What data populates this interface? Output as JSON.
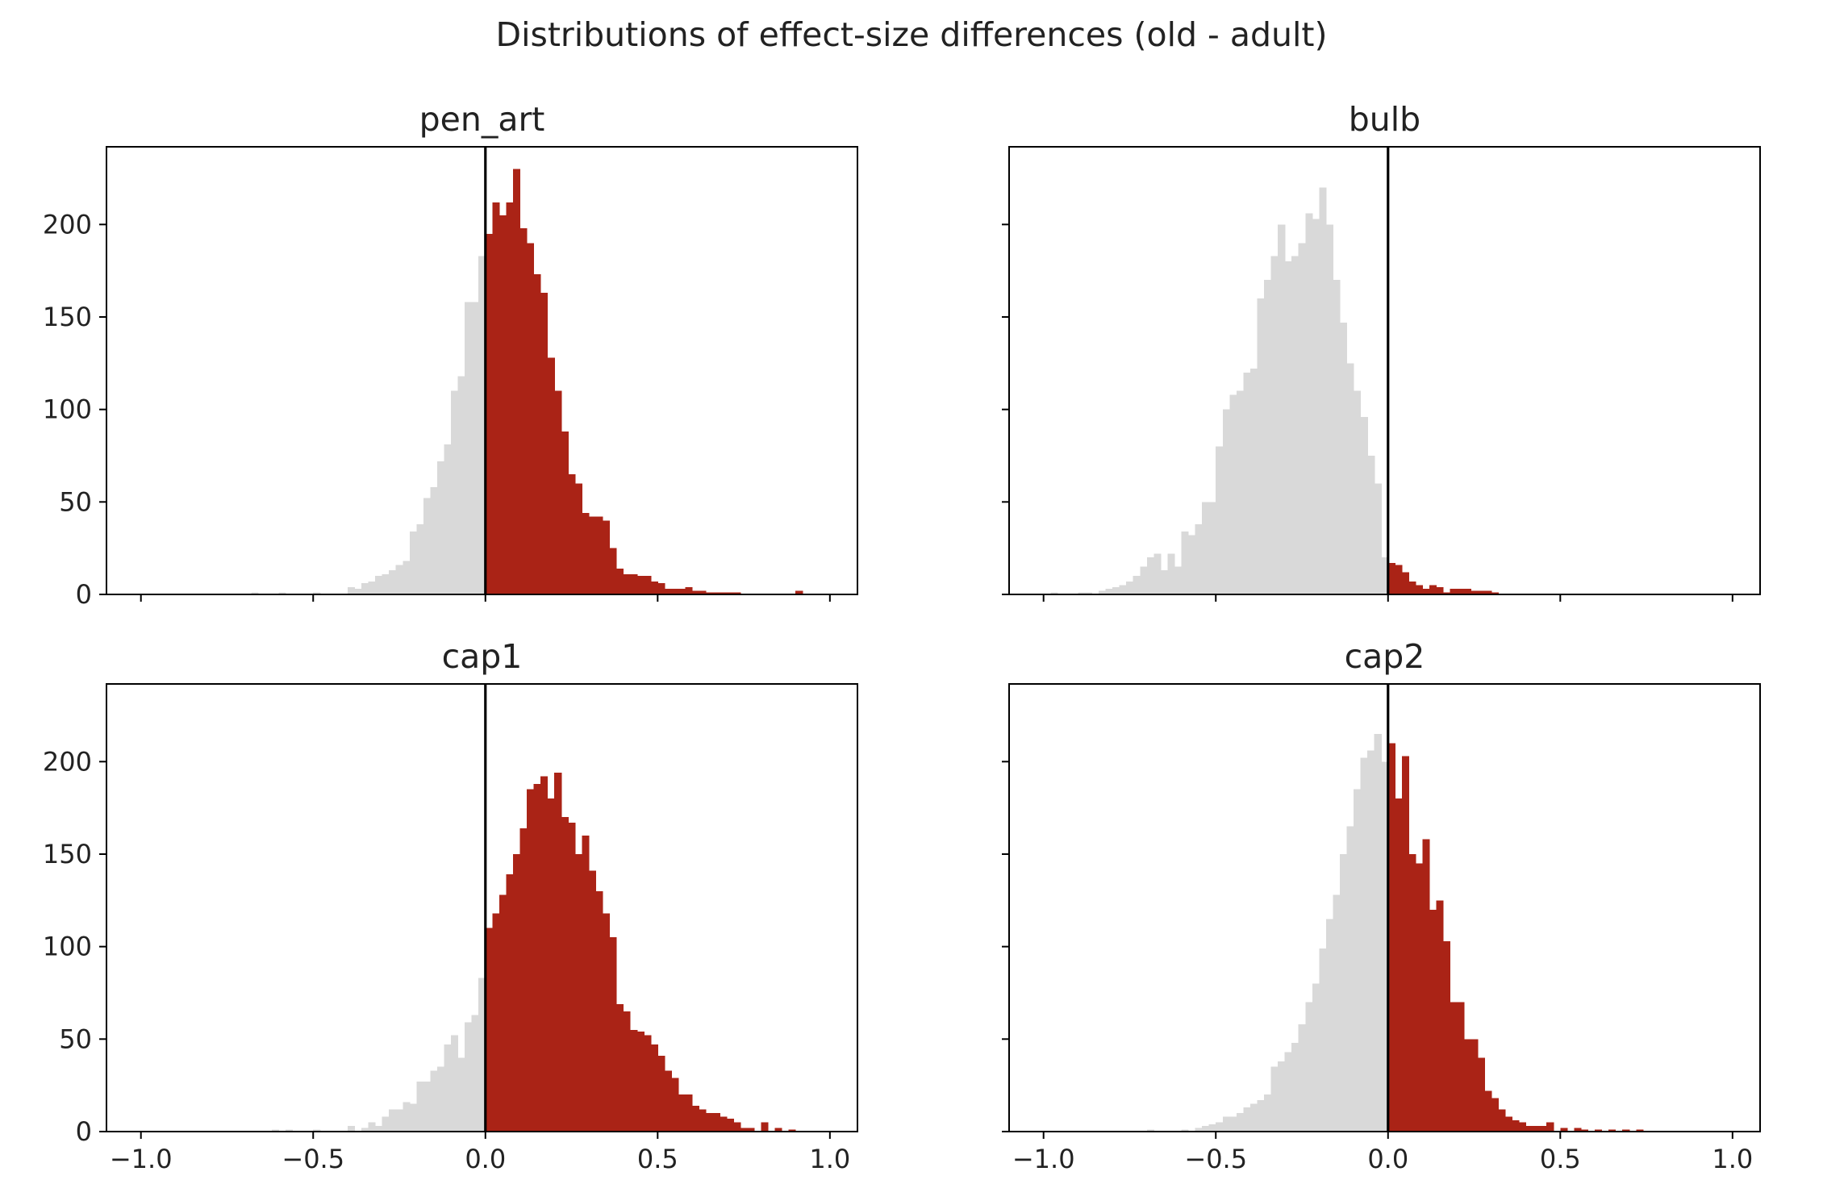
{
  "title": "Distributions of effect-size differences (old - adult)",
  "colors": {
    "below_zero": "#d9d9d9",
    "above_zero": "#aa2316",
    "zero_line": "#000000",
    "axes": "#000000"
  },
  "chart_data": [
    {
      "type": "bar",
      "title": "pen_art",
      "xlim": [
        -1.1,
        1.08
      ],
      "ylim": [
        0,
        242
      ],
      "xticks": [
        -1.0,
        -0.5,
        0.0,
        0.5,
        1.0
      ],
      "xtick_labels": [
        "−1.0",
        "−0.5",
        "0.0",
        "0.5",
        "1.0"
      ],
      "yticks": [
        0,
        50,
        100,
        150,
        200
      ],
      "ytick_labels": [
        "0",
        "50",
        "100",
        "150",
        "200"
      ],
      "show_xtick_labels": false,
      "show_ytick_labels": true,
      "vline_x": 0,
      "bin_width": 0.02,
      "bin_starts": [
        -0.68,
        -0.6,
        -0.5,
        -0.4,
        -0.38,
        -0.36,
        -0.34,
        -0.32,
        -0.3,
        -0.28,
        -0.26,
        -0.24,
        -0.22,
        -0.2,
        -0.18,
        -0.16,
        -0.14,
        -0.12,
        -0.1,
        -0.08,
        -0.06,
        -0.04,
        -0.02,
        0.0,
        0.02,
        0.04,
        0.06,
        0.08,
        0.1,
        0.12,
        0.14,
        0.16,
        0.18,
        0.2,
        0.22,
        0.24,
        0.26,
        0.28,
        0.3,
        0.32,
        0.34,
        0.36,
        0.38,
        0.4,
        0.42,
        0.44,
        0.46,
        0.48,
        0.5,
        0.52,
        0.54,
        0.56,
        0.58,
        0.6,
        0.62,
        0.64,
        0.66,
        0.68,
        0.7,
        0.72,
        0.9
      ],
      "values": [
        1,
        1,
        1,
        4,
        3,
        6,
        7,
        10,
        11,
        13,
        16,
        18,
        34,
        38,
        52,
        58,
        72,
        81,
        110,
        118,
        158,
        158,
        183,
        195,
        212,
        205,
        212,
        230,
        198,
        190,
        173,
        163,
        128,
        110,
        88,
        65,
        60,
        44,
        42,
        42,
        40,
        25,
        14,
        11,
        11,
        10,
        10,
        7,
        6,
        3,
        3,
        3,
        4,
        2,
        2,
        1,
        1,
        1,
        1,
        1,
        2
      ]
    },
    {
      "type": "bar",
      "title": "bulb",
      "xlim": [
        -1.1,
        1.08
      ],
      "ylim": [
        0,
        242
      ],
      "xticks": [
        -1.0,
        -0.5,
        0.0,
        0.5,
        1.0
      ],
      "xtick_labels": [
        "−1.0",
        "−0.5",
        "0.0",
        "0.5",
        "1.0"
      ],
      "yticks": [
        0,
        50,
        100,
        150,
        200
      ],
      "ytick_labels": [
        "0",
        "50",
        "100",
        "150",
        "200"
      ],
      "show_xtick_labels": false,
      "show_ytick_labels": false,
      "vline_x": 0,
      "bin_width": 0.02,
      "bin_starts": [
        -0.98,
        -0.9,
        -0.88,
        -0.84,
        -0.82,
        -0.8,
        -0.78,
        -0.76,
        -0.74,
        -0.72,
        -0.7,
        -0.68,
        -0.66,
        -0.64,
        -0.62,
        -0.6,
        -0.58,
        -0.56,
        -0.54,
        -0.52,
        -0.5,
        -0.48,
        -0.46,
        -0.44,
        -0.42,
        -0.4,
        -0.38,
        -0.36,
        -0.34,
        -0.32,
        -0.3,
        -0.28,
        -0.26,
        -0.24,
        -0.22,
        -0.2,
        -0.18,
        -0.16,
        -0.14,
        -0.12,
        -0.1,
        -0.08,
        -0.06,
        -0.04,
        -0.02,
        0.0,
        0.02,
        0.04,
        0.06,
        0.08,
        0.1,
        0.12,
        0.14,
        0.16,
        0.18,
        0.2,
        0.22,
        0.24,
        0.26,
        0.28,
        0.3
      ],
      "values": [
        1,
        1,
        1,
        2,
        3,
        4,
        5,
        7,
        10,
        15,
        20,
        22,
        13,
        22,
        15,
        34,
        32,
        38,
        50,
        50,
        80,
        100,
        108,
        110,
        120,
        122,
        160,
        170,
        183,
        200,
        180,
        183,
        190,
        206,
        203,
        220,
        200,
        170,
        147,
        125,
        110,
        96,
        75,
        60,
        20,
        17,
        16,
        12,
        7,
        5,
        3,
        5,
        4,
        1,
        3,
        3,
        3,
        2,
        2,
        2,
        1
      ]
    },
    {
      "type": "bar",
      "title": "cap1",
      "xlim": [
        -1.1,
        1.08
      ],
      "ylim": [
        0,
        242
      ],
      "xticks": [
        -1.0,
        -0.5,
        0.0,
        0.5,
        1.0
      ],
      "xtick_labels": [
        "−1.0",
        "−0.5",
        "0.0",
        "0.5",
        "1.0"
      ],
      "yticks": [
        0,
        50,
        100,
        150,
        200
      ],
      "ytick_labels": [
        "0",
        "50",
        "100",
        "150",
        "200"
      ],
      "show_xtick_labels": true,
      "show_ytick_labels": true,
      "vline_x": 0,
      "bin_width": 0.02,
      "bin_starts": [
        -0.62,
        -0.58,
        -0.5,
        -0.4,
        -0.36,
        -0.34,
        -0.32,
        -0.3,
        -0.28,
        -0.26,
        -0.24,
        -0.22,
        -0.2,
        -0.18,
        -0.16,
        -0.14,
        -0.12,
        -0.1,
        -0.08,
        -0.06,
        -0.04,
        -0.02,
        0.0,
        0.02,
        0.04,
        0.06,
        0.08,
        0.1,
        0.12,
        0.14,
        0.16,
        0.18,
        0.2,
        0.22,
        0.24,
        0.26,
        0.28,
        0.3,
        0.32,
        0.34,
        0.36,
        0.38,
        0.4,
        0.42,
        0.44,
        0.46,
        0.48,
        0.5,
        0.52,
        0.54,
        0.56,
        0.58,
        0.6,
        0.62,
        0.64,
        0.66,
        0.68,
        0.7,
        0.72,
        0.74,
        0.76,
        0.8,
        0.84,
        0.88
      ],
      "values": [
        1,
        1,
        1,
        3,
        2,
        5,
        3,
        8,
        12,
        12,
        16,
        15,
        27,
        27,
        33,
        35,
        47,
        52,
        40,
        59,
        63,
        83,
        110,
        118,
        128,
        139,
        150,
        164,
        185,
        188,
        192,
        180,
        194,
        170,
        167,
        150,
        160,
        141,
        130,
        118,
        105,
        69,
        65,
        55,
        54,
        52,
        47,
        41,
        33,
        29,
        20,
        20,
        14,
        12,
        10,
        10,
        8,
        7,
        5,
        2,
        2,
        5,
        2,
        1
      ]
    },
    {
      "type": "bar",
      "title": "cap2",
      "xlim": [
        -1.1,
        1.08
      ],
      "ylim": [
        0,
        242
      ],
      "xticks": [
        -1.0,
        -0.5,
        0.0,
        0.5,
        1.0
      ],
      "xtick_labels": [
        "−1.0",
        "−0.5",
        "0.0",
        "0.5",
        "1.0"
      ],
      "yticks": [
        0,
        50,
        100,
        150,
        200
      ],
      "ytick_labels": [
        "0",
        "50",
        "100",
        "150",
        "200"
      ],
      "show_xtick_labels": true,
      "show_ytick_labels": false,
      "vline_x": 0,
      "bin_width": 0.02,
      "bin_starts": [
        -0.7,
        -0.6,
        -0.56,
        -0.54,
        -0.52,
        -0.5,
        -0.48,
        -0.46,
        -0.44,
        -0.42,
        -0.4,
        -0.38,
        -0.36,
        -0.34,
        -0.32,
        -0.3,
        -0.28,
        -0.26,
        -0.24,
        -0.22,
        -0.2,
        -0.18,
        -0.16,
        -0.14,
        -0.12,
        -0.1,
        -0.08,
        -0.06,
        -0.04,
        -0.02,
        0.0,
        0.02,
        0.04,
        0.06,
        0.08,
        0.1,
        0.12,
        0.14,
        0.16,
        0.18,
        0.2,
        0.22,
        0.24,
        0.26,
        0.28,
        0.3,
        0.32,
        0.34,
        0.36,
        0.38,
        0.4,
        0.42,
        0.44,
        0.46,
        0.5,
        0.54,
        0.56,
        0.6,
        0.64,
        0.68,
        0.72
      ],
      "values": [
        1,
        1,
        2,
        3,
        4,
        5,
        8,
        8,
        10,
        13,
        15,
        17,
        20,
        35,
        38,
        43,
        48,
        58,
        70,
        80,
        99,
        115,
        128,
        150,
        165,
        185,
        202,
        206,
        215,
        200,
        210,
        180,
        203,
        150,
        145,
        158,
        120,
        125,
        103,
        70,
        70,
        50,
        50,
        40,
        22,
        18,
        12,
        8,
        6,
        5,
        3,
        3,
        3,
        5,
        2,
        2,
        1,
        1,
        1,
        1,
        1
      ]
    }
  ]
}
